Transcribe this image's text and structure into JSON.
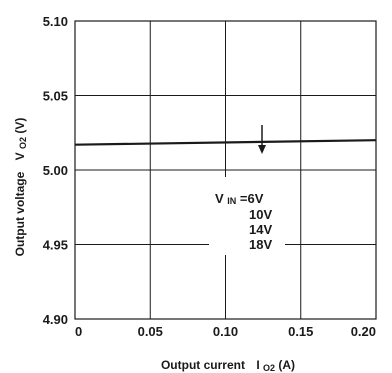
{
  "chart_data": {
    "type": "line",
    "xlabel": {
      "main": "Output current",
      "symbol": "I",
      "sub": "O2",
      "unit": " (A)"
    },
    "ylabel": {
      "main": "Output voltage",
      "symbol": "V",
      "sub": "O2",
      "unit": " (V)"
    },
    "xlim": [
      0,
      0.2
    ],
    "ylim": [
      4.9,
      5.1
    ],
    "x_ticks": [
      "0",
      "0.05",
      "0.10",
      "0.15",
      "0.20"
    ],
    "y_ticks": [
      "4.90",
      "4.95",
      "5.00",
      "5.05",
      "5.10"
    ],
    "grid": true,
    "series": [
      {
        "x": [
          0,
          0.2
        ],
        "y": [
          5.017,
          5.02
        ]
      }
    ],
    "annotation": {
      "prefix": "V",
      "prefix_sub": "IN",
      "first": "=6V",
      "labels": [
        "10V",
        "14V",
        "18V"
      ]
    }
  }
}
